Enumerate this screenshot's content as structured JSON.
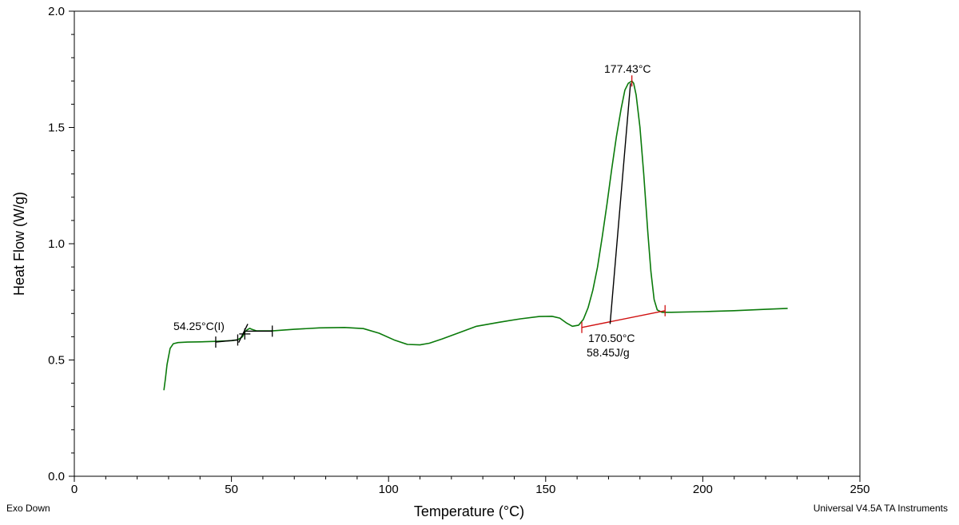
{
  "chart_data": {
    "type": "line",
    "xlabel": "Temperature (°C)",
    "ylabel": "Heat Flow (W/g)",
    "xlim": [
      0,
      250
    ],
    "ylim": [
      0.0,
      2.0
    ],
    "x_ticks": [
      "0",
      "50",
      "100",
      "150",
      "200",
      "250"
    ],
    "y_ticks": [
      "0.0",
      "0.5",
      "1.0",
      "1.5",
      "2.0"
    ],
    "x_minor_step": 10,
    "y_minor_step": 0.1,
    "grid": false,
    "series": [
      {
        "color": "#0a7a0a",
        "x": [
          28.5,
          29.0,
          29.5,
          30.5,
          31.5,
          33,
          36,
          40,
          45,
          50,
          52,
          53.5,
          54.25,
          55,
          55.8,
          56.5,
          58,
          63,
          70,
          78,
          86,
          92,
          97,
          102,
          106,
          110,
          113,
          117,
          122,
          128,
          135,
          142,
          148,
          152,
          154.5,
          156.5,
          158.5,
          160.5,
          162,
          163.5,
          165,
          166.5,
          168,
          169.5,
          171,
          172.5,
          174,
          175.2,
          176.3,
          177.0,
          177.43,
          178.0,
          178.8,
          180,
          181.2,
          182.5,
          183.5,
          184.5,
          185.5,
          187,
          190,
          200,
          210,
          220,
          227
        ],
        "y": [
          0.37,
          0.42,
          0.48,
          0.55,
          0.57,
          0.575,
          0.577,
          0.578,
          0.58,
          0.583,
          0.587,
          0.6,
          0.62,
          0.63,
          0.636,
          0.632,
          0.625,
          0.625,
          0.632,
          0.638,
          0.64,
          0.635,
          0.615,
          0.585,
          0.567,
          0.565,
          0.572,
          0.59,
          0.615,
          0.645,
          0.662,
          0.677,
          0.687,
          0.688,
          0.68,
          0.66,
          0.645,
          0.65,
          0.675,
          0.725,
          0.8,
          0.9,
          1.03,
          1.17,
          1.32,
          1.46,
          1.58,
          1.66,
          1.69,
          1.696,
          1.7,
          1.69,
          1.64,
          1.5,
          1.3,
          1.05,
          0.88,
          0.76,
          0.715,
          0.705,
          0.705,
          0.708,
          0.712,
          0.718,
          0.722
        ]
      }
    ],
    "annotations": {
      "glass_transition": {
        "label": "54.25°C(I)",
        "color": "#000000",
        "baseline_lower": [
          [
            45,
            0.577
          ],
          [
            52,
            0.586
          ]
        ],
        "baseline_upper": [
          [
            54.5,
            0.624
          ],
          [
            63,
            0.624
          ]
        ],
        "tangent": [
          [
            52.3,
            0.575
          ],
          [
            55.2,
            0.655
          ]
        ],
        "ticks": [
          [
            45,
            0.577
          ],
          [
            52,
            0.586
          ],
          [
            54.25,
            0.612
          ],
          [
            63,
            0.624
          ]
        ]
      },
      "melting": {
        "peak_label": "177.43°C",
        "onset_label": "170.50°C",
        "enthalpy_label": "58.45J/g",
        "baseline_color": "#d01010",
        "tangent_color": "#000000",
        "baseline": [
          [
            161.5,
            0.64
          ],
          [
            188,
            0.712
          ]
        ],
        "baseline_ticks": [
          [
            161.5,
            0.64
          ],
          [
            188,
            0.712
          ]
        ],
        "peak_tick": [
          177.43,
          1.7
        ],
        "tangent": [
          [
            170.5,
            0.655
          ],
          [
            177.0,
            1.69
          ]
        ]
      }
    }
  },
  "footer": {
    "left": "Exo Down",
    "right": "Universal V4.5A TA Instruments"
  }
}
